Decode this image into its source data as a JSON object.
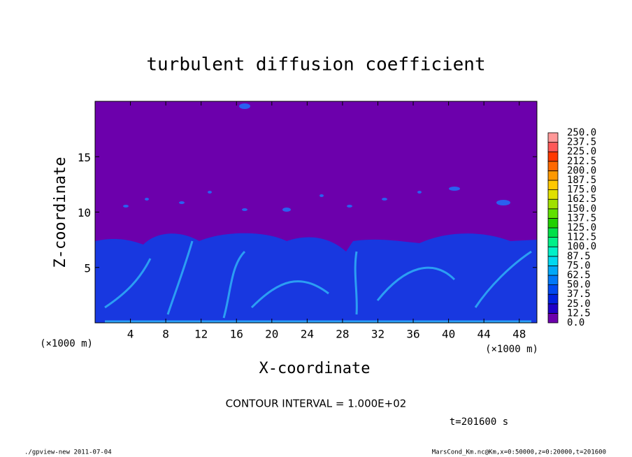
{
  "chart_data": {
    "type": "contour",
    "title": "turbulent diffusion coefficient",
    "x_label": "X-coordinate",
    "y_label": "Z-coordinate",
    "x_unit": "(×1000 m)",
    "xlim": [
      0,
      50
    ],
    "xticks": [
      4,
      8,
      12,
      16,
      20,
      24,
      28,
      32,
      36,
      40,
      44,
      48
    ],
    "ylim": [
      0,
      20
    ],
    "yticks": [
      5,
      10,
      15
    ],
    "colorbar": {
      "levels": [
        {
          "value": 0,
          "label": "0.0"
        },
        {
          "value": 12.5,
          "label": "12.5"
        },
        {
          "value": 25,
          "label": "25.0"
        },
        {
          "value": 37.5,
          "label": "37.5"
        },
        {
          "value": 50,
          "label": "50.0"
        },
        {
          "value": 62.5,
          "label": "62.5"
        },
        {
          "value": 75,
          "label": "75.0"
        },
        {
          "value": 87.5,
          "label": "87.5"
        },
        {
          "value": 100,
          "label": "100.0"
        },
        {
          "value": 112.5,
          "label": "112.5"
        },
        {
          "value": 125,
          "label": "125.0"
        },
        {
          "value": 137.5,
          "label": "137.5"
        },
        {
          "value": 150,
          "label": "150.0"
        },
        {
          "value": 162.5,
          "label": "162.5"
        },
        {
          "value": 175,
          "label": "175.0"
        },
        {
          "value": 187.5,
          "label": "187.5"
        },
        {
          "value": 200,
          "label": "200.0"
        },
        {
          "value": 212.5,
          "label": "212.5"
        },
        {
          "value": 225,
          "label": "225.0"
        },
        {
          "value": 237.5,
          "label": "237.5"
        },
        {
          "value": 250,
          "label": "250.0"
        }
      ],
      "colors": [
        "#6c00ac",
        "#2000c8",
        "#0020e0",
        "#0048f0",
        "#0078f8",
        "#00a8f8",
        "#00d8f0",
        "#00f0c8",
        "#00f088",
        "#00e048",
        "#20d000",
        "#60e000",
        "#a0e000",
        "#e0e000",
        "#ffc800",
        "#ff9800",
        "#ff6800",
        "#ff3800",
        "#ff5858",
        "#ff9898"
      ]
    },
    "contour_interval": "CONTOUR INTERVAL = 1.000E+02",
    "time_label": "t=201600 s",
    "footer_left": "./gpview-new  2011-07-04",
    "footer_right": "MarsCond_Km.nc@Km,x=0:50000,z=0:20000,t=201600"
  }
}
